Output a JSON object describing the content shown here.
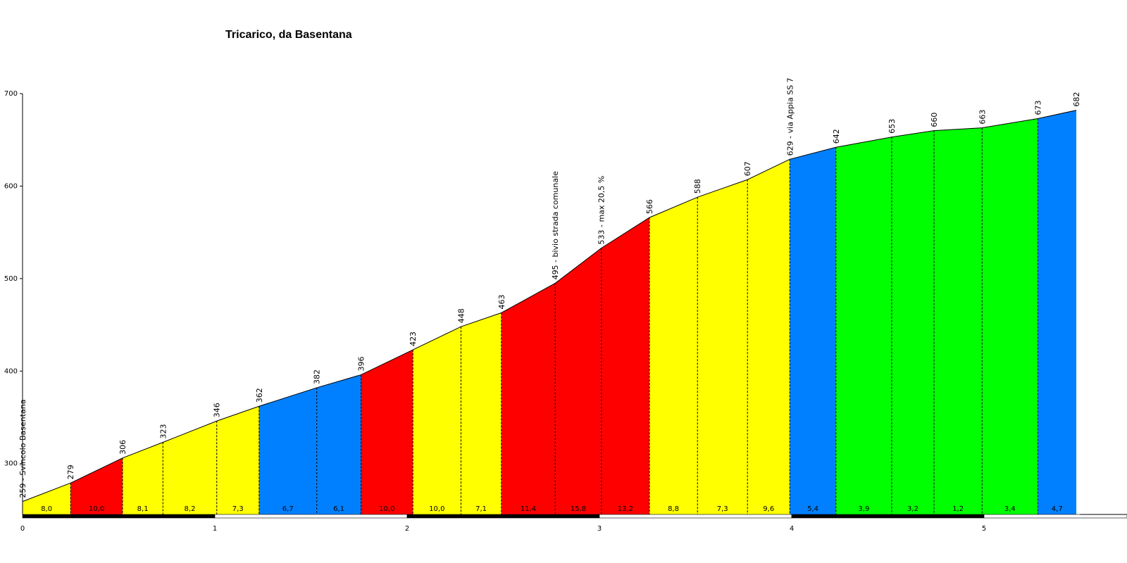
{
  "chart_data": {
    "type": "area",
    "title": "Tricarico, da Basentana",
    "xlabel": "",
    "ylabel": "",
    "xlim": [
      0,
      5.5
    ],
    "ylim": [
      245,
      700
    ],
    "x_ticks": [
      0,
      1,
      2,
      3,
      4,
      5
    ],
    "y_ticks": [
      300,
      400,
      500,
      600,
      700
    ],
    "profile": [
      {
        "x": 0.0,
        "y": 259,
        "label": "259 - Svincolo Basentana"
      },
      {
        "x": 0.25,
        "y": 279,
        "label": "279"
      },
      {
        "x": 0.52,
        "y": 306,
        "label": "306"
      },
      {
        "x": 0.73,
        "y": 323,
        "label": "323"
      },
      {
        "x": 1.01,
        "y": 346,
        "label": "346"
      },
      {
        "x": 1.23,
        "y": 362,
        "label": "362"
      },
      {
        "x": 1.53,
        "y": 382,
        "label": "382"
      },
      {
        "x": 1.76,
        "y": 396,
        "label": "396"
      },
      {
        "x": 2.03,
        "y": 423,
        "label": "423"
      },
      {
        "x": 2.28,
        "y": 448,
        "label": "448"
      },
      {
        "x": 2.49,
        "y": 463,
        "label": "463"
      },
      {
        "x": 2.77,
        "y": 495,
        "label": "495 - bivio strada comunale"
      },
      {
        "x": 3.01,
        "y": 533,
        "label": "533 - max  20,5 %"
      },
      {
        "x": 3.26,
        "y": 566,
        "label": "566"
      },
      {
        "x": 3.51,
        "y": 588,
        "label": "588"
      },
      {
        "x": 3.77,
        "y": 607,
        "label": "607"
      },
      {
        "x": 3.99,
        "y": 629,
        "label": "629 - via Appia SS 7"
      },
      {
        "x": 4.23,
        "y": 642,
        "label": "642"
      },
      {
        "x": 4.52,
        "y": 653,
        "label": "653"
      },
      {
        "x": 4.74,
        "y": 660,
        "label": "660"
      },
      {
        "x": 4.99,
        "y": 663,
        "label": "663"
      },
      {
        "x": 5.28,
        "y": 673,
        "label": "673"
      },
      {
        "x": 5.48,
        "y": 682,
        "label": "682"
      }
    ],
    "gradients": [
      "8,0",
      "10,0",
      "8,1",
      "8,2",
      "7,3",
      "6,7",
      "6,1",
      "10,0",
      "10,0",
      "7,1",
      "11,4",
      "15,8",
      "13,2",
      "8,8",
      "7,3",
      "9,6",
      "5,4",
      "3,9",
      "3,2",
      "1,2",
      "3,4",
      "4,7"
    ],
    "segment_colors": [
      "#ffff00",
      "#ff0000",
      "#ffff00",
      "#ffff00",
      "#ffff00",
      "#0080ff",
      "#0080ff",
      "#ff0000",
      "#ffff00",
      "#ffff00",
      "#ff0000",
      "#ff0000",
      "#ff0000",
      "#ffff00",
      "#ffff00",
      "#ffff00",
      "#0080ff",
      "#00ff00",
      "#00ff00",
      "#00ff00",
      "#00ff00",
      "#0080ff"
    ],
    "colors": {
      "yellow": "#ffff00",
      "red": "#ff0000",
      "blue": "#0080ff",
      "green": "#00ff00"
    },
    "grid": false,
    "legend": "none"
  }
}
